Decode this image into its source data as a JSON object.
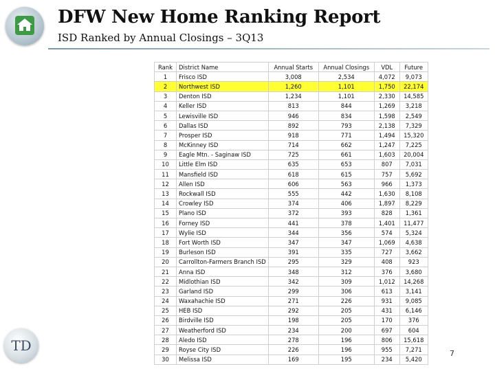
{
  "header": {
    "title": "DFW New Home Ranking Report",
    "subtitle": "ISD Ranked by Annual Closings – 3Q13"
  },
  "table": {
    "columns": [
      "Rank",
      "District Name",
      "Annual Starts",
      "Annual Closings",
      "VDL",
      "Future"
    ],
    "highlight_color": "#ffff33",
    "rows": [
      {
        "rank": "1",
        "name": "Frisco ISD",
        "starts": "3,008",
        "closings": "2,534",
        "vdl": "4,072",
        "future": "9,073"
      },
      {
        "rank": "2",
        "name": "Northwest ISD",
        "starts": "1,260",
        "closings": "1,101",
        "vdl": "1,750",
        "future": "22,174",
        "highlight": true
      },
      {
        "rank": "3",
        "name": "Denton ISD",
        "starts": "1,234",
        "closings": "1,101",
        "vdl": "2,330",
        "future": "14,585"
      },
      {
        "rank": "4",
        "name": "Keller ISD",
        "starts": "813",
        "closings": "844",
        "vdl": "1,269",
        "future": "3,218"
      },
      {
        "rank": "5",
        "name": "Lewisville ISD",
        "starts": "946",
        "closings": "834",
        "vdl": "1,598",
        "future": "2,549"
      },
      {
        "rank": "6",
        "name": "Dallas ISD",
        "starts": "892",
        "closings": "793",
        "vdl": "2,138",
        "future": "7,329"
      },
      {
        "rank": "7",
        "name": "Prosper ISD",
        "starts": "918",
        "closings": "771",
        "vdl": "1,494",
        "future": "15,320"
      },
      {
        "rank": "8",
        "name": "McKinney ISD",
        "starts": "714",
        "closings": "662",
        "vdl": "1,247",
        "future": "7,225"
      },
      {
        "rank": "9",
        "name": "Eagle Mtn. - Saginaw ISD",
        "starts": "725",
        "closings": "661",
        "vdl": "1,603",
        "future": "20,004"
      },
      {
        "rank": "10",
        "name": "Little Elm ISD",
        "starts": "635",
        "closings": "653",
        "vdl": "807",
        "future": "7,031"
      },
      {
        "rank": "11",
        "name": "Mansfield ISD",
        "starts": "618",
        "closings": "615",
        "vdl": "757",
        "future": "5,692"
      },
      {
        "rank": "12",
        "name": "Allen ISD",
        "starts": "606",
        "closings": "563",
        "vdl": "966",
        "future": "1,373"
      },
      {
        "rank": "13",
        "name": "Rockwall ISD",
        "starts": "555",
        "closings": "442",
        "vdl": "1,630",
        "future": "8,108"
      },
      {
        "rank": "14",
        "name": "Crowley ISD",
        "starts": "374",
        "closings": "406",
        "vdl": "1,897",
        "future": "8,229"
      },
      {
        "rank": "15",
        "name": "Plano ISD",
        "starts": "372",
        "closings": "393",
        "vdl": "828",
        "future": "1,361"
      },
      {
        "rank": "16",
        "name": "Forney ISD",
        "starts": "441",
        "closings": "378",
        "vdl": "1,401",
        "future": "11,477"
      },
      {
        "rank": "17",
        "name": "Wylie ISD",
        "starts": "344",
        "closings": "356",
        "vdl": "574",
        "future": "5,324"
      },
      {
        "rank": "18",
        "name": "Fort Worth ISD",
        "starts": "347",
        "closings": "347",
        "vdl": "1,069",
        "future": "4,638"
      },
      {
        "rank": "19",
        "name": "Burleson ISD",
        "starts": "391",
        "closings": "335",
        "vdl": "727",
        "future": "3,662"
      },
      {
        "rank": "20",
        "name": "Carrollton-Farmers Branch ISD",
        "starts": "295",
        "closings": "329",
        "vdl": "408",
        "future": "923"
      },
      {
        "rank": "21",
        "name": "Anna ISD",
        "starts": "348",
        "closings": "312",
        "vdl": "376",
        "future": "3,680"
      },
      {
        "rank": "22",
        "name": "Midlothian ISD",
        "starts": "342",
        "closings": "309",
        "vdl": "1,012",
        "future": "14,268"
      },
      {
        "rank": "23",
        "name": "Garland ISD",
        "starts": "299",
        "closings": "306",
        "vdl": "613",
        "future": "3,141"
      },
      {
        "rank": "24",
        "name": "Waxahachie ISD",
        "starts": "271",
        "closings": "226",
        "vdl": "931",
        "future": "9,085"
      },
      {
        "rank": "25",
        "name": "HEB ISD",
        "starts": "292",
        "closings": "205",
        "vdl": "431",
        "future": "6,146"
      },
      {
        "rank": "26",
        "name": "Birdville ISD",
        "starts": "198",
        "closings": "205",
        "vdl": "170",
        "future": "376"
      },
      {
        "rank": "27",
        "name": "Weatherford ISD",
        "starts": "234",
        "closings": "200",
        "vdl": "697",
        "future": "604"
      },
      {
        "rank": "28",
        "name": "Aledo ISD",
        "starts": "278",
        "closings": "196",
        "vdl": "806",
        "future": "15,618"
      },
      {
        "rank": "29",
        "name": "Royse City ISD",
        "starts": "226",
        "closings": "196",
        "vdl": "955",
        "future": "7,271"
      },
      {
        "rank": "30",
        "name": "Melissa ISD",
        "starts": "169",
        "closings": "195",
        "vdl": "234",
        "future": "5,420"
      }
    ]
  },
  "footer": {
    "page_number": "7",
    "logo_text": "TD"
  },
  "icons": {
    "top_logo": "house-icon",
    "bottom_logo": "company-logo-icon"
  },
  "colors": {
    "house_green": "#3f9a45"
  }
}
